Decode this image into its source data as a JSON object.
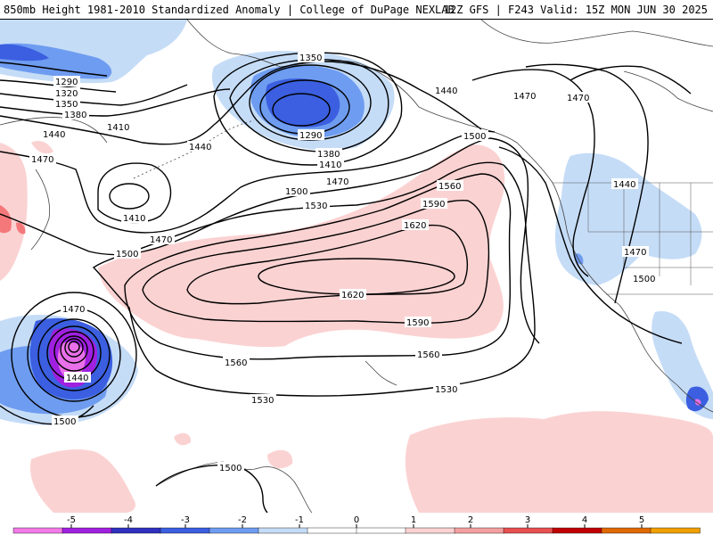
{
  "header": {
    "title": "850mb Height 1981-2010 Standardized Anomaly | College of DuPage NEXLAB",
    "run_info": "12Z GFS | F243 Valid: 15Z MON JUN 30 2025"
  },
  "colors": {
    "anom_pos1": "#fbd2d2",
    "anom_neg1": "#c5dcf7",
    "anom_neg2": "#6e9cf0",
    "anom_neg3": "#3b5fe0",
    "anom_neg4": "#7a1fd0",
    "anom_neg5": "#e870e8",
    "anom_pos2": "#f4787a",
    "contour": "#000000"
  },
  "contour_labels": [
    "1290",
    "1320",
    "1350",
    "1380",
    "1410",
    "1440",
    "1470",
    "1500",
    "1350",
    "1290",
    "1380",
    "1410",
    "1440",
    "1470",
    "1500",
    "1530",
    "1410",
    "1470",
    "1500",
    "1560",
    "1590",
    "1620",
    "1620",
    "1590",
    "1560",
    "1560",
    "1530",
    "1530",
    "1470",
    "1440",
    "1500",
    "1500",
    "1440",
    "1470",
    "1500",
    "1440",
    "1470",
    "1470",
    "1500"
  ],
  "colorbar": {
    "labels": [
      "-5",
      "-4",
      "-3",
      "-2",
      "-1",
      "0",
      "1",
      "2",
      "3",
      "4",
      "5"
    ],
    "colors": [
      "#f27ae8",
      "#a020e0",
      "#3030c0",
      "#3b5fe0",
      "#6e9cf0",
      "#c5dcf7",
      "#ffffff",
      "#ffffff",
      "#fbd2d2",
      "#f4a0a0",
      "#e85050",
      "#c00000",
      "#e06a00",
      "#f0a000"
    ]
  }
}
